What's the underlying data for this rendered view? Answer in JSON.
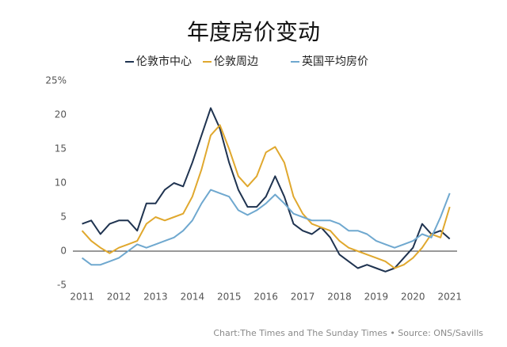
{
  "chart_data": {
    "type": "line",
    "title": "年度房价变动",
    "source": "Chart:The Times and The Sunday Times • Source: ONS/Savills",
    "x": [
      2011,
      2011.25,
      2011.5,
      2011.75,
      2012,
      2012.25,
      2012.5,
      2012.75,
      2013,
      2013.25,
      2013.5,
      2013.75,
      2014,
      2014.25,
      2014.5,
      2014.75,
      2015,
      2015.25,
      2015.5,
      2015.75,
      2016,
      2016.25,
      2016.5,
      2016.75,
      2017,
      2017.25,
      2017.5,
      2017.75,
      2018,
      2018.25,
      2018.5,
      2018.75,
      2019,
      2019.25,
      2019.5,
      2019.75,
      2020,
      2020.25,
      2020.5,
      2020.75,
      2021
    ],
    "series": [
      {
        "name": "伦敦市中心",
        "color": "#1f3350",
        "values": [
          4,
          4.5,
          2.5,
          4,
          4.5,
          4.5,
          3,
          7,
          7,
          9,
          10,
          9.5,
          13,
          17,
          21,
          18,
          13,
          9,
          6.5,
          6.5,
          8,
          11,
          8,
          4,
          3,
          2.5,
          3.5,
          2,
          -0.5,
          -1.5,
          -2.5,
          -2,
          -2.5,
          -3,
          -2.5,
          -1,
          0.5,
          4,
          2.5,
          3,
          1.8
        ]
      },
      {
        "name": "伦敦周边",
        "color": "#e0a82e",
        "values": [
          3,
          1.5,
          0.5,
          -0.3,
          0.5,
          1,
          1.5,
          4,
          5,
          4.5,
          5,
          5.5,
          8,
          12,
          17,
          18.5,
          15,
          11,
          9.5,
          11,
          14.5,
          15.3,
          13,
          8,
          5.5,
          4,
          3.5,
          3,
          1.5,
          0.5,
          0,
          -0.5,
          -1,
          -1.5,
          -2.5,
          -2,
          -1,
          0.5,
          2.5,
          2,
          6.5
        ]
      },
      {
        "name": "英国平均房价",
        "color": "#6fa8cf",
        "values": [
          -1,
          -2,
          -2,
          -1.5,
          -1,
          0,
          1,
          0.5,
          1,
          1.5,
          2,
          3,
          4.5,
          7,
          9,
          8.5,
          8,
          6,
          5.3,
          6,
          7,
          8.3,
          7,
          5.5,
          5,
          4.5,
          4.5,
          4.5,
          4,
          3,
          3,
          2.5,
          1.5,
          1,
          0.5,
          1,
          1.5,
          2.5,
          2,
          5,
          8.5
        ]
      }
    ],
    "xlim": [
      2010.75,
      2021.2
    ],
    "xticks": [
      2011,
      2012,
      2013,
      2014,
      2015,
      2016,
      2017,
      2018,
      2019,
      2020,
      2021
    ],
    "ylim": [
      -5,
      25
    ],
    "yticks": [
      -5,
      0,
      5,
      10,
      15,
      20,
      {
        "value": 25,
        "label": "25%"
      }
    ],
    "zero_line": true
  }
}
